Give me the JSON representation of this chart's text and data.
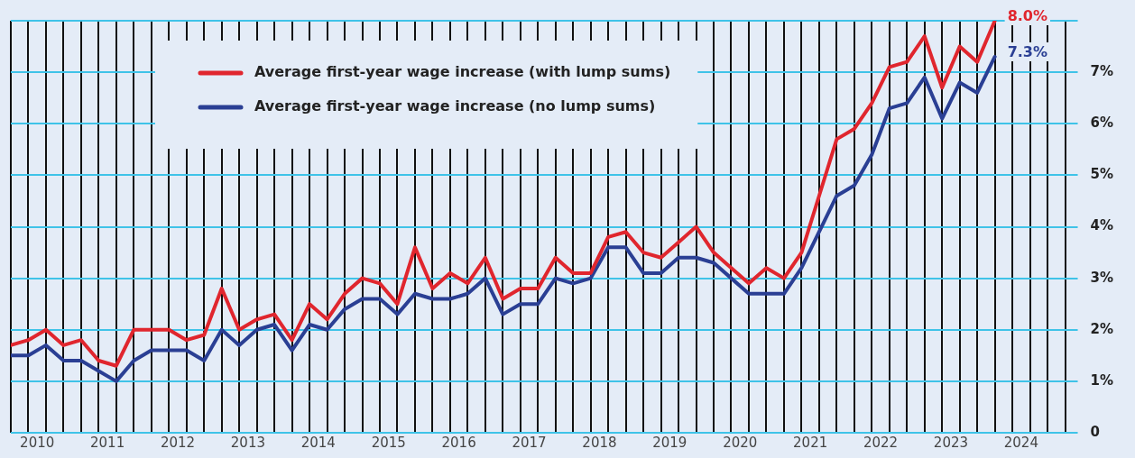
{
  "chart_data": {
    "type": "line",
    "legend": "top left",
    "grid": true,
    "marker": "none",
    "line_style": "solid",
    "x": [
      2010,
      2010.25,
      2010.5,
      2010.75,
      2011,
      2011.25,
      2011.5,
      2011.75,
      2012,
      2012.25,
      2012.5,
      2012.75,
      2013,
      2013.25,
      2013.5,
      2013.75,
      2014,
      2014.25,
      2014.5,
      2014.75,
      2015,
      2015.25,
      2015.5,
      2015.75,
      2016,
      2016.25,
      2016.5,
      2016.75,
      2017,
      2017.25,
      2017.5,
      2017.75,
      2018,
      2018.25,
      2018.5,
      2018.75,
      2019,
      2019.25,
      2019.5,
      2019.75,
      2020,
      2020.25,
      2020.5,
      2020.75,
      2021,
      2021.25,
      2021.5,
      2021.75,
      2022,
      2022.25,
      2022.5,
      2022.75,
      2023,
      2023.25,
      2023.5,
      2023.75,
      2024
    ],
    "series": [
      {
        "name": "Average first-year wage increase (with lump sums)",
        "color": "#e0262e",
        "values": [
          1.7,
          1.8,
          2.0,
          1.7,
          1.8,
          1.4,
          1.3,
          2.0,
          2.0,
          2.0,
          1.8,
          1.9,
          2.8,
          2.0,
          2.2,
          2.3,
          1.8,
          2.5,
          2.2,
          2.7,
          3.0,
          2.9,
          2.5,
          3.6,
          2.8,
          3.1,
          2.9,
          3.4,
          2.6,
          2.8,
          2.8,
          3.4,
          3.1,
          3.1,
          3.8,
          3.9,
          3.5,
          3.4,
          3.7,
          4.0,
          3.5,
          3.2,
          2.9,
          3.2,
          3.0,
          3.5,
          4.6,
          5.7,
          5.9,
          6.4,
          7.1,
          7.2,
          7.7,
          6.7,
          7.5,
          7.2,
          8.0
        ],
        "value_labels": [
          null,
          null,
          null,
          null,
          null,
          null,
          null,
          null,
          null,
          null,
          null,
          null,
          null,
          null,
          null,
          null,
          null,
          null,
          null,
          null,
          null,
          null,
          null,
          null,
          null,
          null,
          null,
          null,
          null,
          null,
          null,
          null,
          null,
          null,
          null,
          null,
          null,
          null,
          null,
          null,
          null,
          null,
          null,
          null,
          null,
          null,
          null,
          null,
          null,
          null,
          null,
          null,
          null,
          null,
          null,
          null,
          "8.0%"
        ]
      },
      {
        "name": "Average first-year wage increase (no lump sums)",
        "color": "#2a3f94",
        "values": [
          1.5,
          1.5,
          1.7,
          1.4,
          1.4,
          1.2,
          1.0,
          1.4,
          1.6,
          1.6,
          1.6,
          1.4,
          2.0,
          1.7,
          2.0,
          2.1,
          1.6,
          2.1,
          2.0,
          2.4,
          2.6,
          2.6,
          2.3,
          2.7,
          2.6,
          2.6,
          2.7,
          3.0,
          2.3,
          2.5,
          2.5,
          3.0,
          2.9,
          3.0,
          3.6,
          3.6,
          3.1,
          3.1,
          3.4,
          3.4,
          3.3,
          3.0,
          2.7,
          2.7,
          2.7,
          3.2,
          3.9,
          4.6,
          4.8,
          5.4,
          6.3,
          6.4,
          6.9,
          6.1,
          6.8,
          6.6,
          7.3
        ],
        "value_labels": [
          null,
          null,
          null,
          null,
          null,
          null,
          null,
          null,
          null,
          null,
          null,
          null,
          null,
          null,
          null,
          null,
          null,
          null,
          null,
          null,
          null,
          null,
          null,
          null,
          null,
          null,
          null,
          null,
          null,
          null,
          null,
          null,
          null,
          null,
          null,
          null,
          null,
          null,
          null,
          null,
          null,
          null,
          null,
          null,
          null,
          null,
          null,
          null,
          null,
          null,
          null,
          null,
          null,
          null,
          null,
          null,
          "7.3%"
        ]
      }
    ],
    "xlim": [
      2010,
      2025
    ],
    "xticks": [
      {
        "value": 2010,
        "label": null
      },
      {
        "value": 2010.25,
        "label": null
      },
      {
        "value": 2010.5,
        "label": null
      },
      {
        "value": 2010.75,
        "label": null
      },
      {
        "value": 2011,
        "label": null
      },
      {
        "value": 2011.25,
        "label": null
      },
      {
        "value": 2011.5,
        "label": null
      },
      {
        "value": 2011.75,
        "label": null
      },
      {
        "value": 2012,
        "label": null
      },
      {
        "value": 2012.25,
        "label": null
      },
      {
        "value": 2012.5,
        "label": null
      },
      {
        "value": 2012.75,
        "label": null
      },
      {
        "value": 2013,
        "label": null
      },
      {
        "value": 2013.25,
        "label": null
      },
      {
        "value": 2013.5,
        "label": null
      },
      {
        "value": 2013.75,
        "label": null
      },
      {
        "value": 2014,
        "label": null
      },
      {
        "value": 2014.25,
        "label": null
      },
      {
        "value": 2014.5,
        "label": null
      },
      {
        "value": 2014.75,
        "label": null
      },
      {
        "value": 2015,
        "label": null
      },
      {
        "value": 2015.25,
        "label": null
      },
      {
        "value": 2015.5,
        "label": null
      },
      {
        "value": 2015.75,
        "label": null
      },
      {
        "value": 2016,
        "label": null
      },
      {
        "value": 2016.25,
        "label": null
      },
      {
        "value": 2016.5,
        "label": null
      },
      {
        "value": 2016.75,
        "label": null
      },
      {
        "value": 2017,
        "label": null
      },
      {
        "value": 2017.25,
        "label": null
      },
      {
        "value": 2017.5,
        "label": null
      },
      {
        "value": 2017.75,
        "label": null
      },
      {
        "value": 2018,
        "label": null
      },
      {
        "value": 2018.25,
        "label": null
      },
      {
        "value": 2018.5,
        "label": null
      },
      {
        "value": 2018.75,
        "label": null
      },
      {
        "value": 2019,
        "label": null
      },
      {
        "value": 2019.25,
        "label": null
      },
      {
        "value": 2019.5,
        "label": null
      },
      {
        "value": 2019.75,
        "label": null
      },
      {
        "value": 2020,
        "label": null
      },
      {
        "value": 2020.25,
        "label": null
      },
      {
        "value": 2020.5,
        "label": null
      },
      {
        "value": 2020.75,
        "label": null
      },
      {
        "value": 2021,
        "label": null
      },
      {
        "value": 2021.25,
        "label": null
      },
      {
        "value": 2021.5,
        "label": null
      },
      {
        "value": 2021.75,
        "label": null
      },
      {
        "value": 2022,
        "label": null
      },
      {
        "value": 2022.25,
        "label": null
      },
      {
        "value": 2022.5,
        "label": null
      },
      {
        "value": 2022.75,
        "label": null
      },
      {
        "value": 2023,
        "label": null
      },
      {
        "value": 2023.25,
        "label": null
      },
      {
        "value": 2023.5,
        "label": null
      },
      {
        "value": 2023.75,
        "label": null
      },
      {
        "value": 2024,
        "label": null
      },
      {
        "value": 2024.25,
        "label": null
      },
      {
        "value": 2024.5,
        "label": null
      },
      {
        "value": 2024.75,
        "label": null
      },
      {
        "value": 2025,
        "label": null
      },
      {
        "value": 2010.375,
        "label": "2010"
      },
      {
        "value": 2011.375,
        "label": "2011"
      },
      {
        "value": 2012.375,
        "label": "2012"
      },
      {
        "value": 2013.375,
        "label": "2013"
      },
      {
        "value": 2014.375,
        "label": "2014"
      },
      {
        "value": 2015.375,
        "label": "2015"
      },
      {
        "value": 2016.375,
        "label": "2016"
      },
      {
        "value": 2017.375,
        "label": "2017"
      },
      {
        "value": 2018.375,
        "label": "2018"
      },
      {
        "value": 2019.375,
        "label": "2019"
      },
      {
        "value": 2020.375,
        "label": "2020"
      },
      {
        "value": 2021.375,
        "label": "2021"
      },
      {
        "value": 2022.375,
        "label": "2022"
      },
      {
        "value": 2023.375,
        "label": "2023"
      },
      {
        "value": 2024.375,
        "label": "2024"
      }
    ],
    "ylim": [
      0,
      8
    ],
    "yticks": [
      0,
      {
        "value": 1,
        "label": "1%"
      },
      {
        "value": 2,
        "label": "2%"
      },
      {
        "value": 3,
        "label": "3%"
      },
      {
        "value": 4,
        "label": "4%"
      },
      {
        "value": 5,
        "label": "5%"
      },
      {
        "value": 6,
        "label": "6%"
      },
      {
        "value": 7,
        "label": "7%"
      },
      {
        "value": 8,
        "label": null
      }
    ]
  }
}
